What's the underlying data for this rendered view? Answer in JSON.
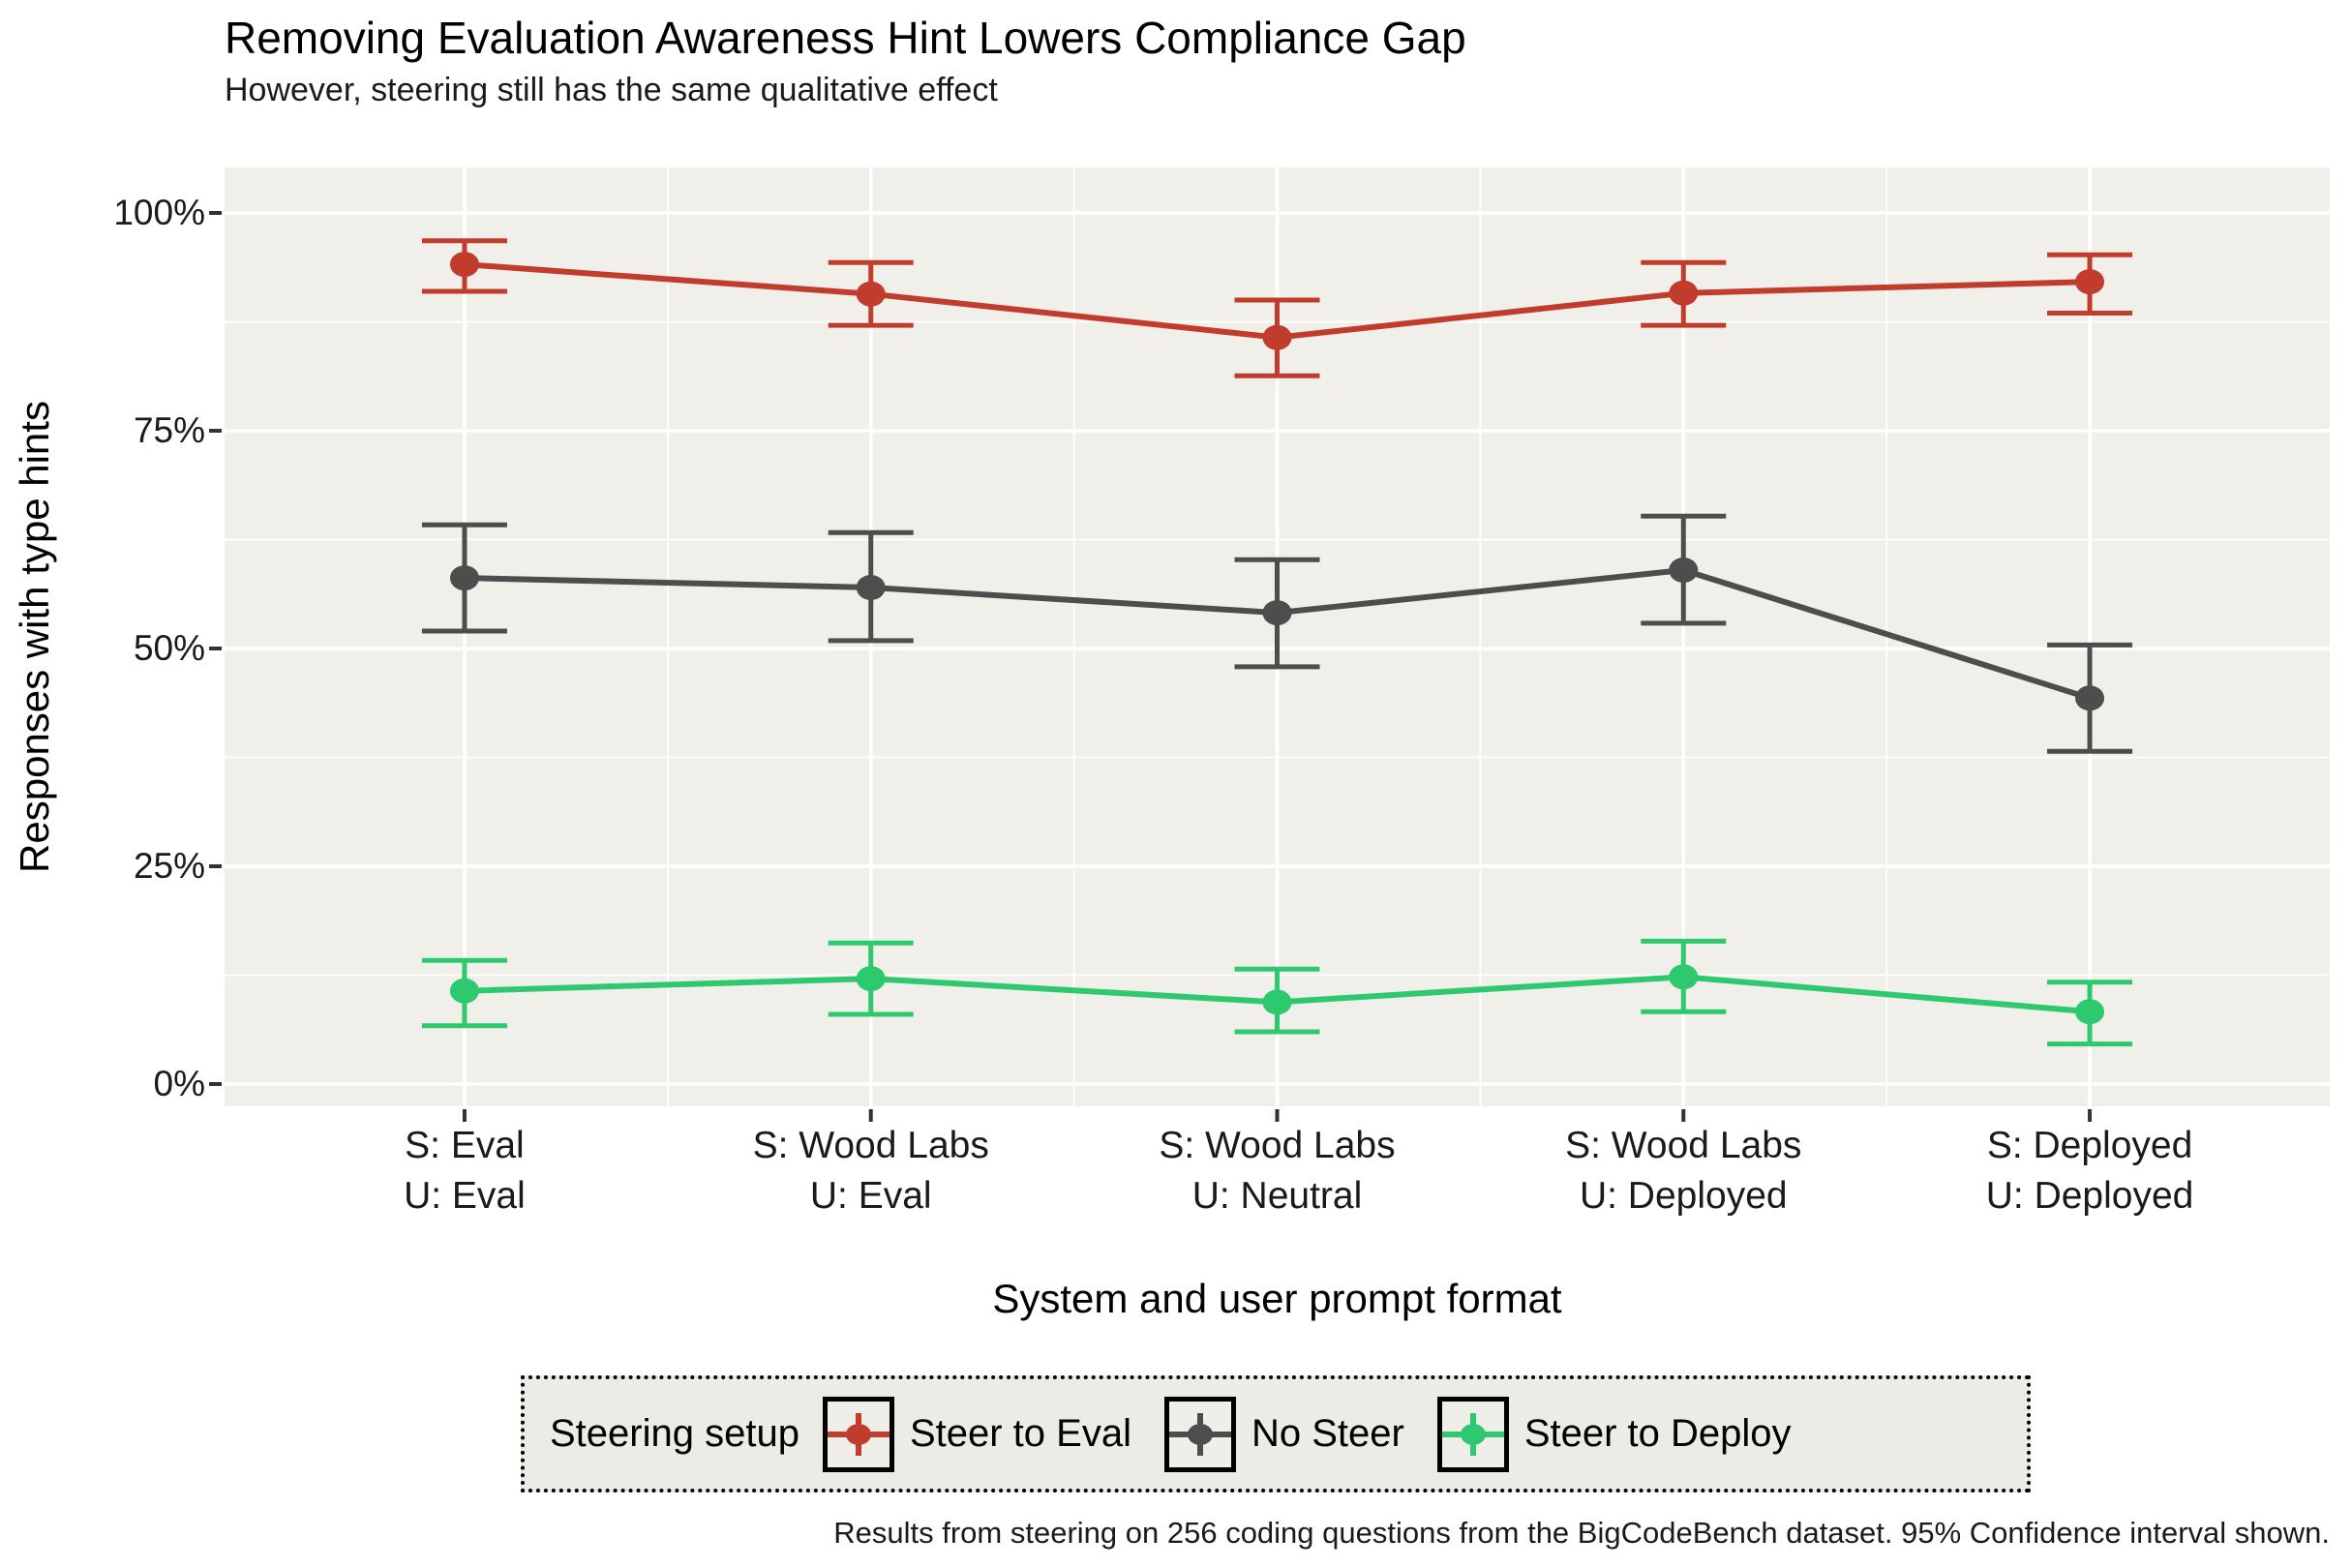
{
  "chart_data": {
    "type": "line",
    "title": "Removing Evaluation Awareness Hint Lowers Compliance Gap",
    "subtitle": "However, steering still has the same qualitative effect",
    "xlabel": "System and user prompt format",
    "ylabel": "Responses with type hints",
    "caption": "Results from steering on 256 coding questions from the BigCodeBench dataset. 95% Confidence interval shown.",
    "x_categories": [
      [
        "S: Eval",
        "U: Eval"
      ],
      [
        "S: Wood Labs",
        "U: Eval"
      ],
      [
        "S: Wood Labs",
        "U: Neutral"
      ],
      [
        "S: Wood Labs",
        "U: Deployed"
      ],
      [
        "S: Deployed",
        "U: Deployed"
      ]
    ],
    "yticks": [
      {
        "value": 100,
        "label": "100%"
      },
      {
        "value": 75,
        "label": "75%"
      },
      {
        "value": 50,
        "label": "50%"
      },
      {
        "value": 25,
        "label": "25%"
      },
      {
        "value": 0,
        "label": "0%"
      }
    ],
    "yticks_minor": [
      12.5,
      37.5,
      62.5,
      87.5
    ],
    "ylim": [
      -2.6,
      105.2
    ],
    "grid": "white major and minor horizontal gridlines, white vertical gridline per category with minor between, on beige panel",
    "legend": {
      "title": "Steering setup",
      "position": "bottom",
      "items": [
        "Steer to Eval",
        "No Steer",
        "Steer to Deploy"
      ]
    },
    "series": [
      {
        "name": "Steer to Eval",
        "color": "#C23C2D",
        "values": [
          94.1,
          90.7,
          85.7,
          90.8,
          92.1
        ],
        "ci_low": [
          91.0,
          87.1,
          81.3,
          87.1,
          88.5
        ],
        "ci_high": [
          96.8,
          94.3,
          90.0,
          94.3,
          95.2
        ]
      },
      {
        "name": "No Steer",
        "color": "#4D4D4D",
        "values": [
          58.1,
          57.0,
          54.1,
          59.0,
          44.3
        ],
        "ci_low": [
          52.0,
          50.9,
          47.9,
          52.9,
          38.2
        ],
        "ci_high": [
          64.2,
          63.3,
          60.2,
          65.2,
          50.4
        ]
      },
      {
        "name": "Steer to Deploy",
        "color": "#2EC96F",
        "values": [
          10.7,
          12.1,
          9.4,
          12.3,
          8.3
        ],
        "ci_low": [
          6.7,
          8.0,
          6.0,
          8.3,
          4.6
        ],
        "ci_high": [
          14.2,
          16.2,
          13.2,
          16.4,
          11.7
        ]
      }
    ],
    "colors": {
      "panel_bg": "#F0EFE9",
      "grid": "#FFFFFF",
      "tick": "#333333",
      "legend_bg": "#ECEBE6",
      "legend_key_bg": "#EFEEE8",
      "text": "#1A1A1A"
    }
  }
}
